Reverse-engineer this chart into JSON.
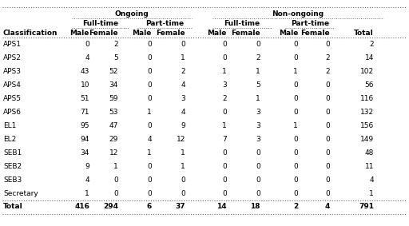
{
  "header_row1_labels": [
    "Ongoing",
    "Non-ongoing"
  ],
  "header_row2_labels": [
    "Full-time",
    "Part-time",
    "Full-time",
    "Part-time"
  ],
  "header_row3": [
    "Classification",
    "Male",
    "Female",
    "Male",
    "Female",
    "Male",
    "Female",
    "Male",
    "Female",
    "Total"
  ],
  "rows": [
    [
      "APS1",
      "0",
      "2",
      "0",
      "0",
      "0",
      "0",
      "0",
      "0",
      "2"
    ],
    [
      "APS2",
      "4",
      "5",
      "0",
      "1",
      "0",
      "2",
      "0",
      "2",
      "14"
    ],
    [
      "APS3",
      "43",
      "52",
      "0",
      "2",
      "1",
      "1",
      "1",
      "2",
      "102"
    ],
    [
      "APS4",
      "10",
      "34",
      "0",
      "4",
      "3",
      "5",
      "0",
      "0",
      "56"
    ],
    [
      "APS5",
      "51",
      "59",
      "0",
      "3",
      "2",
      "1",
      "0",
      "0",
      "116"
    ],
    [
      "APS6",
      "71",
      "53",
      "1",
      "4",
      "0",
      "3",
      "0",
      "0",
      "132"
    ],
    [
      "EL1",
      "95",
      "47",
      "0",
      "9",
      "1",
      "3",
      "1",
      "0",
      "156"
    ],
    [
      "EL2",
      "94",
      "29",
      "4",
      "12",
      "7",
      "3",
      "0",
      "0",
      "149"
    ],
    [
      "SEB1",
      "34",
      "12",
      "1",
      "1",
      "0",
      "0",
      "0",
      "0",
      "48"
    ],
    [
      "SEB2",
      "9",
      "1",
      "0",
      "1",
      "0",
      "0",
      "0",
      "0",
      "11"
    ],
    [
      "SEB3",
      "4",
      "0",
      "0",
      "0",
      "0",
      "0",
      "0",
      "0",
      "4"
    ],
    [
      "Secretary",
      "1",
      "0",
      "0",
      "0",
      "0",
      "0",
      "0",
      "0",
      "1"
    ]
  ],
  "total_row": [
    "Total",
    "416",
    "294",
    "6",
    "37",
    "14",
    "18",
    "2",
    "4",
    "791"
  ],
  "bg_color": "#ffffff",
  "text_color": "#000000",
  "line_color": "#666666",
  "font_size": 6.5,
  "bold_font_size": 6.5
}
